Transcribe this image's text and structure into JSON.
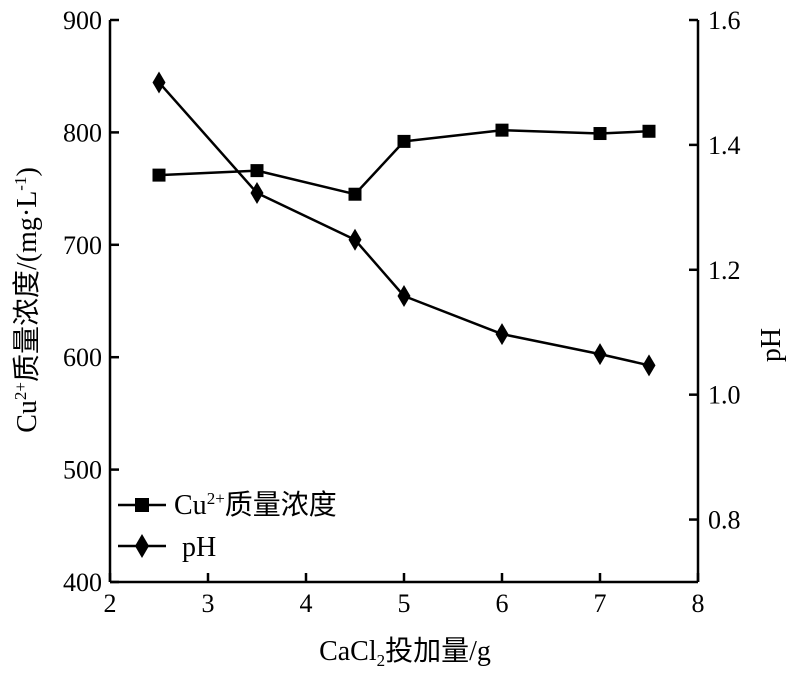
{
  "chart_data": {
    "type": "line",
    "xlabel_main": "CaCl",
    "xlabel_sub": "2",
    "xlabel_tail": "投加量/g",
    "ylabel_left_main": "Cu",
    "ylabel_left_sup": "2+",
    "ylabel_left_tail": "质量浓度/(mg·L",
    "ylabel_left_exp": "-1",
    "ylabel_left_close": ")",
    "ylabel_right": "pH",
    "xlim": [
      2,
      8
    ],
    "ylim_left": [
      400,
      900
    ],
    "ylim_right": [
      0.7,
      1.6
    ],
    "x_ticks": [
      "2",
      "3",
      "4",
      "5",
      "6",
      "7",
      "8"
    ],
    "y_left_ticks": [
      "400",
      "500",
      "600",
      "700",
      "800",
      "900"
    ],
    "y_right_ticks": [
      "0.8",
      "1.0",
      "1.2",
      "1.4",
      "1.6"
    ],
    "grid": false,
    "legend_position": "bottom-left",
    "series": [
      {
        "name": "Cu2+质量浓度",
        "name_main": "Cu",
        "name_sup": "2+",
        "name_tail": "质量浓度",
        "axis": "left",
        "marker": "square",
        "x": [
          2.5,
          3.5,
          4.5,
          5,
          6,
          7,
          7.5
        ],
        "values": [
          762,
          766,
          745,
          792,
          802,
          799,
          801
        ]
      },
      {
        "name": "pH",
        "axis": "right",
        "marker": "diamond",
        "x": [
          2.5,
          3.5,
          4.5,
          5,
          6,
          7,
          7.5
        ],
        "values": [
          1.5,
          1.323,
          1.248,
          1.158,
          1.097,
          1.065,
          1.047
        ]
      }
    ]
  }
}
